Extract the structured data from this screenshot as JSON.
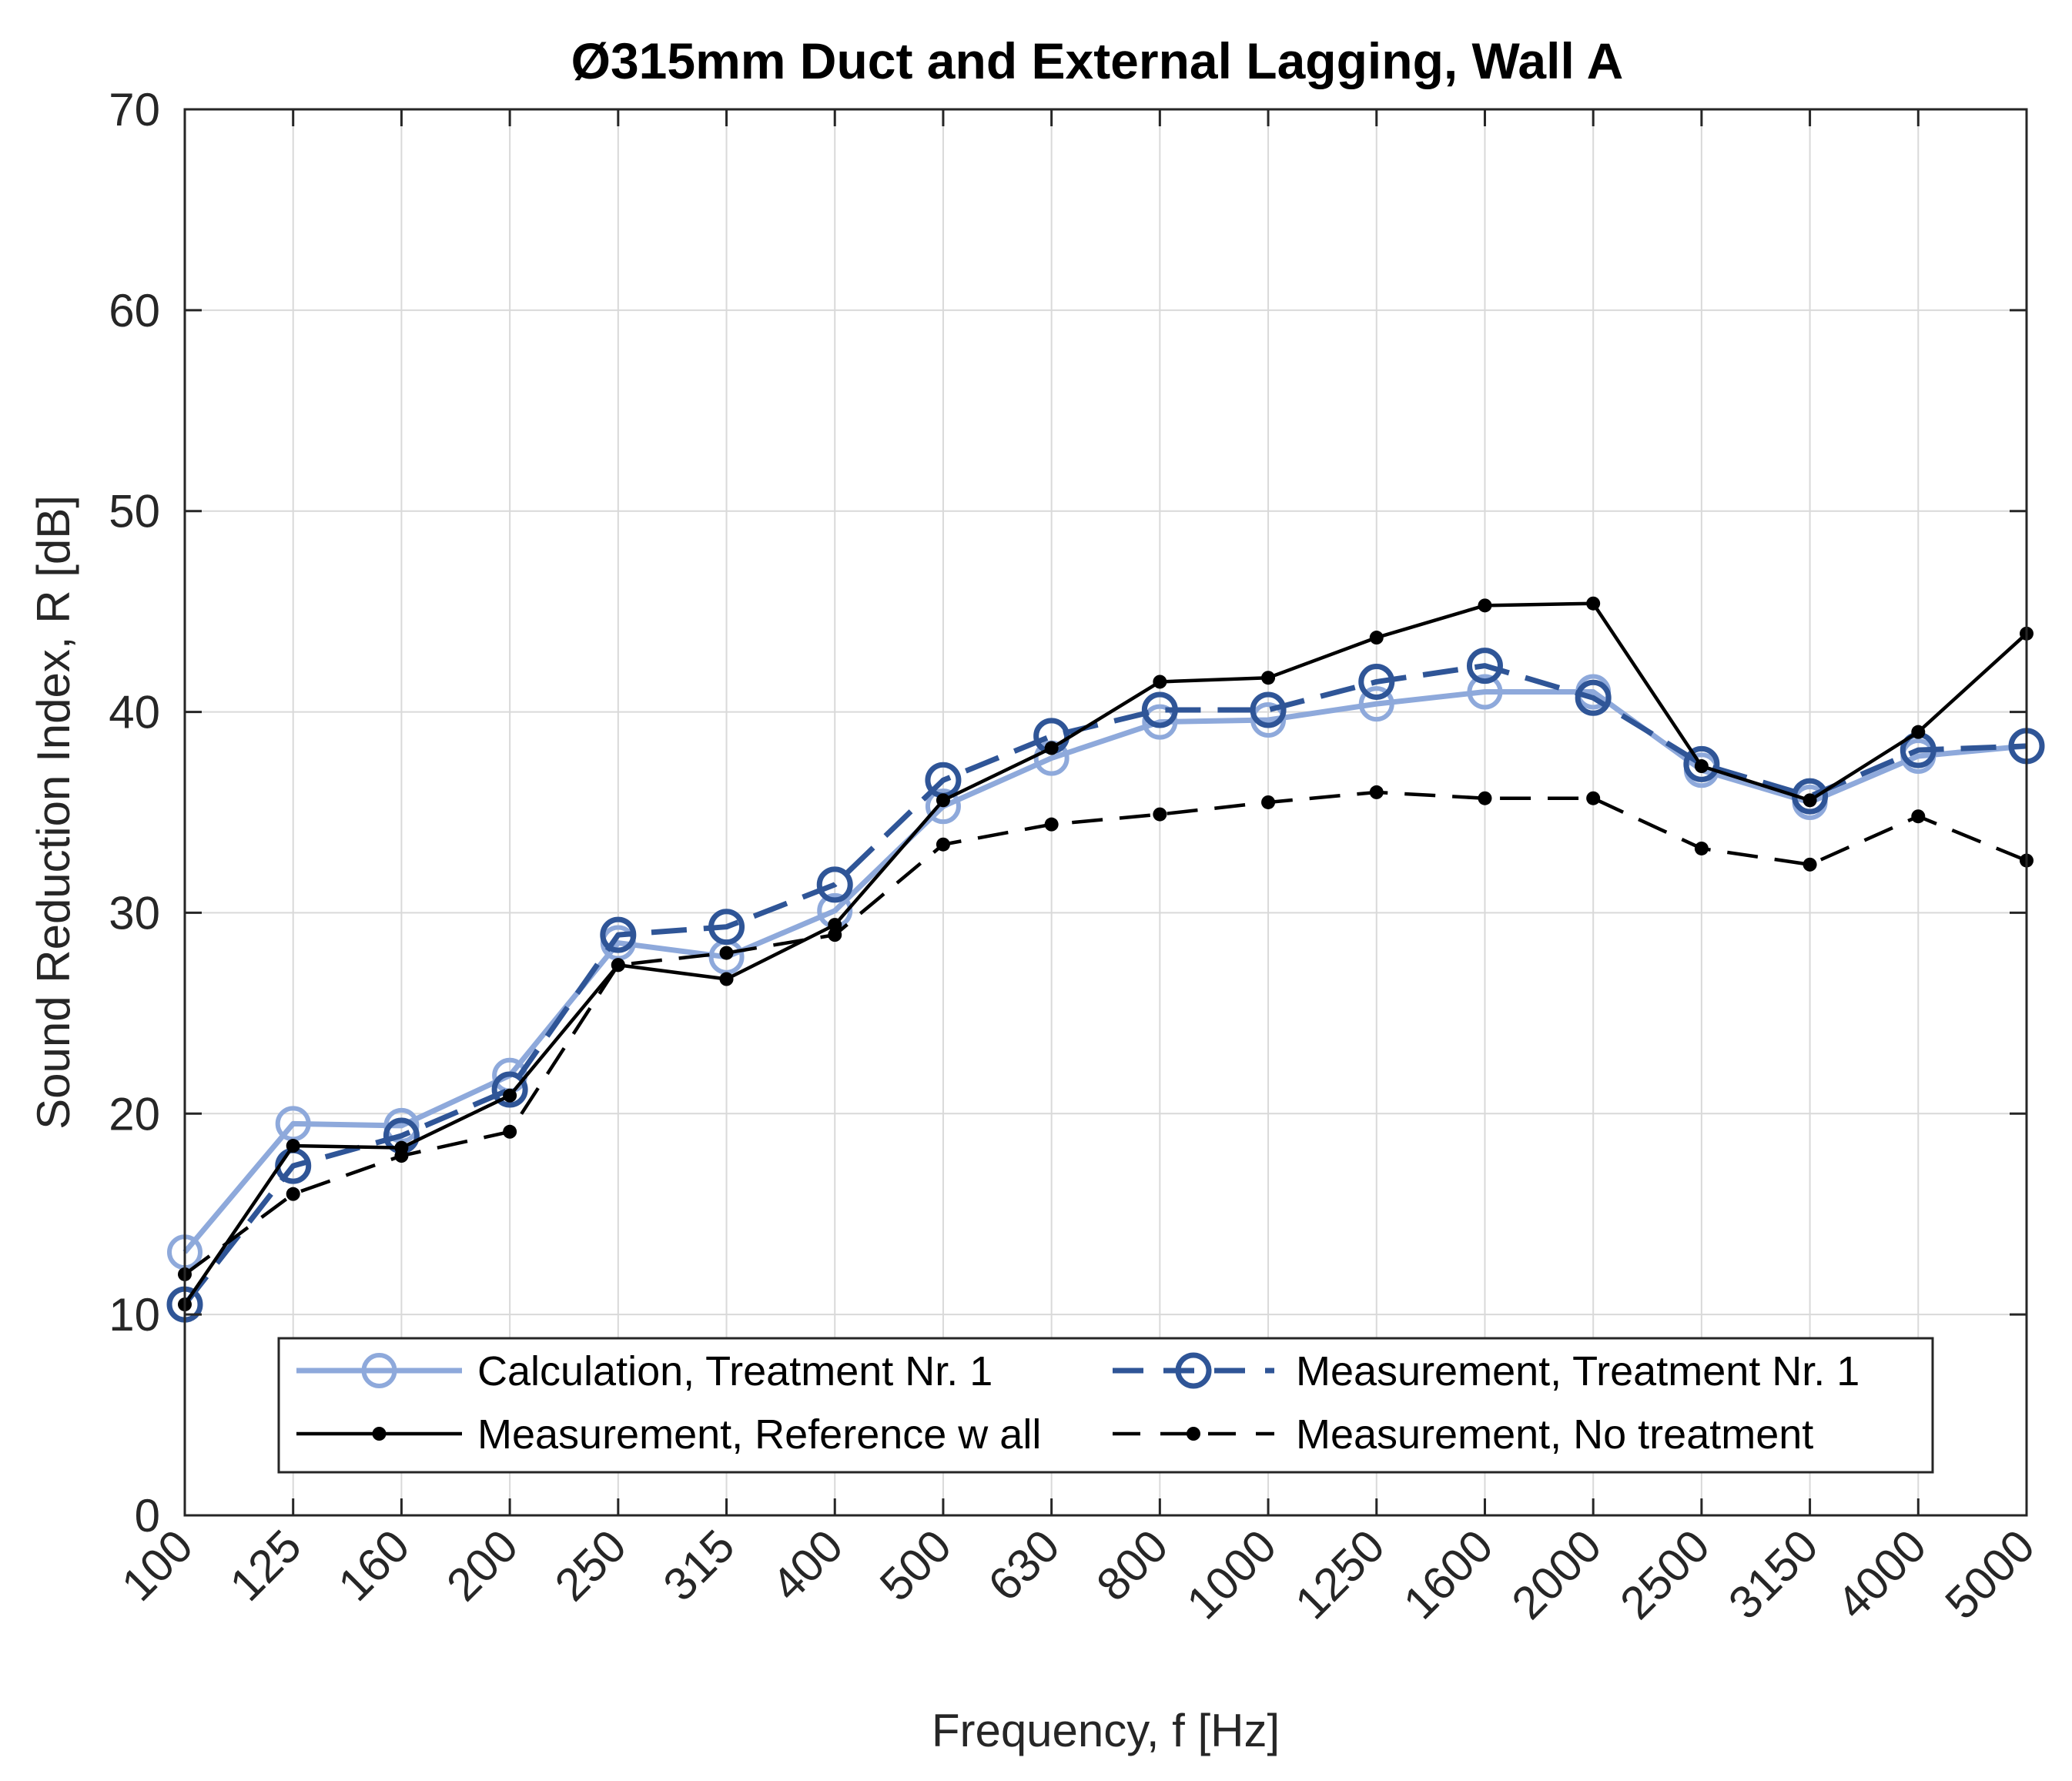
{
  "chart_data": {
    "type": "line",
    "title": "Ø315mm Duct and External Lagging, Wall A",
    "xlabel": "Frequency, f [Hz]",
    "ylabel": "Sound Reduction Index, R [dB]",
    "categories": [
      "100",
      "125",
      "160",
      "200",
      "250",
      "315",
      "400",
      "500",
      "630",
      "800",
      "1000",
      "1250",
      "1600",
      "2000",
      "2500",
      "3150",
      "4000",
      "5000"
    ],
    "ylim": [
      0,
      70
    ],
    "yticks": [
      0,
      10,
      20,
      30,
      40,
      50,
      60,
      70
    ],
    "grid": true,
    "legend_position": "bottom-center",
    "series": [
      {
        "name": "Calculation, Treatment Nr. 1",
        "color": "#8ea9db",
        "line_style": "solid",
        "marker": "circle",
        "values": [
          13.1,
          19.5,
          19.4,
          21.9,
          28.5,
          27.8,
          30.1,
          35.3,
          37.7,
          39.5,
          39.6,
          40.4,
          41.0,
          41.0,
          37.1,
          35.5,
          37.8,
          38.3
        ]
      },
      {
        "name": "Measurement, Treatment Nr. 1",
        "color": "#2f5597",
        "line_style": "dashed",
        "marker": "circle",
        "values": [
          10.5,
          17.4,
          18.9,
          21.2,
          28.9,
          29.3,
          31.4,
          36.6,
          38.8,
          40.1,
          40.1,
          41.5,
          42.3,
          40.7,
          37.4,
          35.8,
          38.1,
          38.3
        ]
      },
      {
        "name": "Measurement, Reference w all",
        "color": "#000000",
        "line_style": "solid",
        "marker": "dot",
        "values": [
          10.5,
          18.4,
          18.3,
          20.9,
          27.4,
          26.7,
          29.4,
          35.6,
          38.2,
          41.5,
          41.7,
          43.7,
          45.3,
          45.4,
          37.3,
          35.6,
          39.0,
          43.9
        ]
      },
      {
        "name": "Measurement, No treatment",
        "color": "#000000",
        "line_style": "dashed",
        "marker": "dot",
        "values": [
          12.0,
          16.0,
          17.9,
          19.1,
          27.4,
          28.0,
          28.9,
          33.4,
          34.4,
          34.9,
          35.5,
          36.0,
          35.7,
          35.7,
          33.2,
          32.4,
          34.8,
          32.6
        ]
      }
    ]
  }
}
